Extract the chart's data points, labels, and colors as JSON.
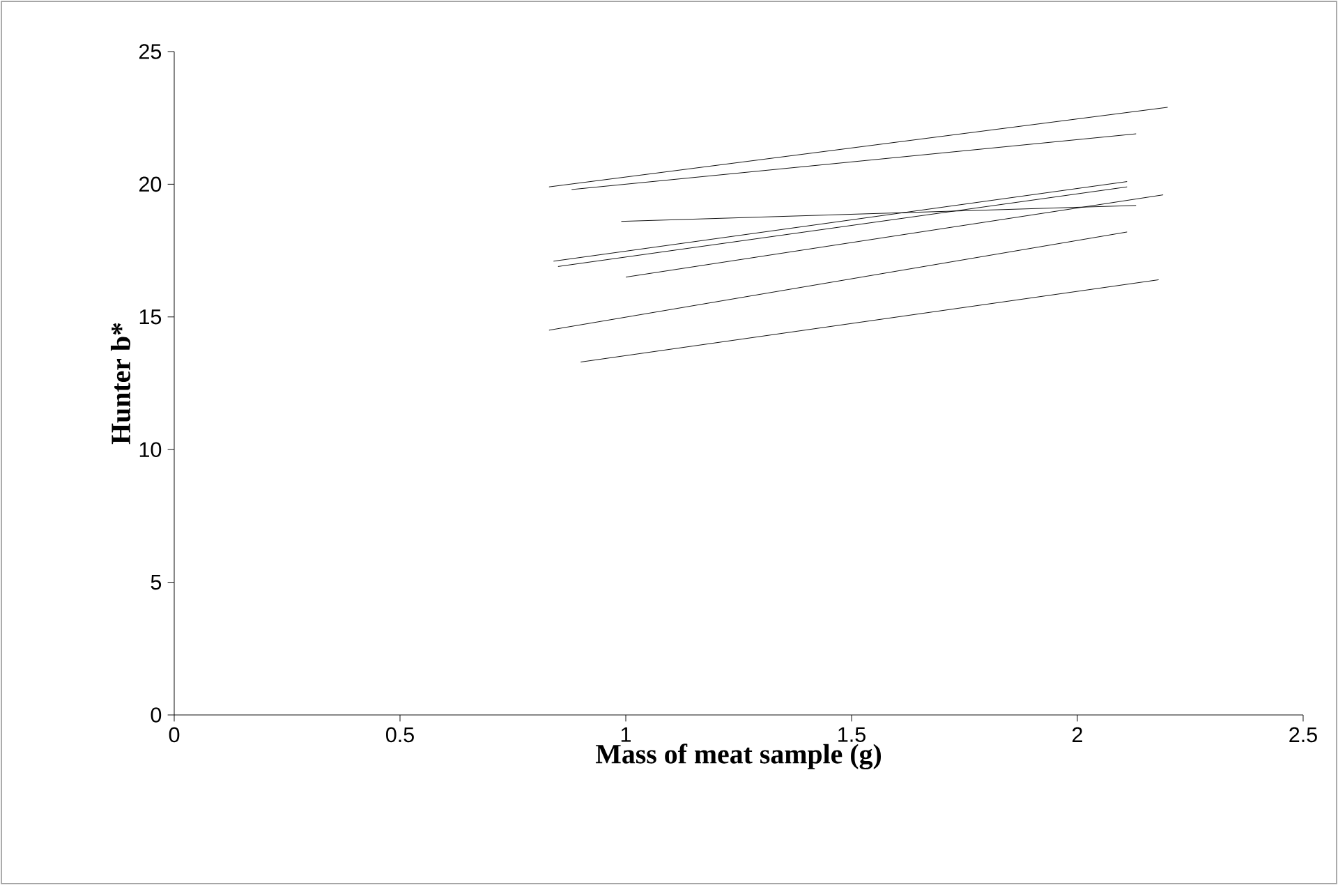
{
  "chart_data": {
    "type": "line",
    "xlabel": "Mass of meat sample (g)",
    "ylabel": "Hunter b*",
    "xlim": [
      0,
      2.5
    ],
    "xticks": [
      0,
      0.5,
      1,
      1.5,
      2,
      2.5
    ],
    "ylim": [
      0,
      25
    ],
    "yticks": [
      0,
      5,
      10,
      15,
      20,
      25
    ],
    "grid": false,
    "marker": "none",
    "line_style": "solid",
    "series": [
      {
        "color": "#000000",
        "x": [
          0.83,
          2.2
        ],
        "values": [
          19.9,
          22.9
        ]
      },
      {
        "color": "#000000",
        "x": [
          0.88,
          2.13
        ],
        "values": [
          19.8,
          21.9
        ]
      },
      {
        "color": "#000000",
        "x": [
          0.99,
          2.13
        ],
        "values": [
          18.6,
          19.2
        ]
      },
      {
        "color": "#000000",
        "x": [
          0.84,
          2.11
        ],
        "values": [
          17.1,
          20.1
        ]
      },
      {
        "color": "#000000",
        "x": [
          0.85,
          2.11
        ],
        "values": [
          16.9,
          19.9
        ]
      },
      {
        "color": "#000000",
        "x": [
          1.0,
          2.19
        ],
        "values": [
          16.5,
          19.6
        ]
      },
      {
        "color": "#000000",
        "x": [
          0.83,
          2.11
        ],
        "values": [
          14.5,
          18.2
        ]
      },
      {
        "color": "#000000",
        "x": [
          0.9,
          2.18
        ],
        "values": [
          13.3,
          16.4
        ]
      }
    ]
  }
}
